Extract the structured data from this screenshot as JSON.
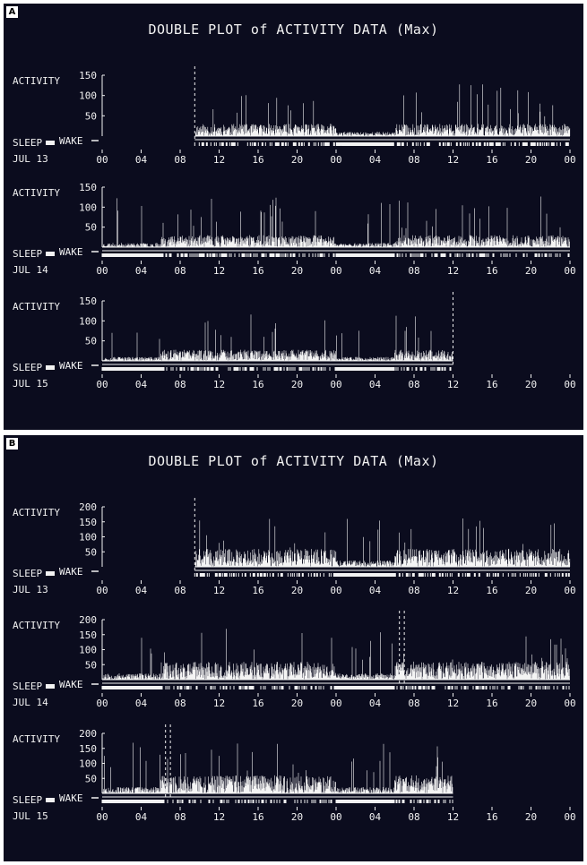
{
  "panels": [
    {
      "letter": "A",
      "title": "DOUBLE PLOT of ACTIVITY DATA (Max)",
      "y_label": "ACTIVITY",
      "sleep_label": "SLEEP",
      "wake_label": "WAKE",
      "x_ticks": [
        "00",
        "04",
        "08",
        "12",
        "16",
        "20",
        "00",
        "04",
        "08",
        "12",
        "16",
        "20",
        "00"
      ],
      "rows": [
        {
          "day": "JUL 13",
          "y_ticks": [
            "150",
            "100",
            "50"
          ],
          "ymax": 150,
          "start_hour": 9.5,
          "end_hour": 48,
          "marker_hours": [
            9.5
          ],
          "level": 30,
          "seed": 11
        },
        {
          "day": "JUL 14",
          "y_ticks": [
            "150",
            "100",
            "50"
          ],
          "ymax": 150,
          "start_hour": 0,
          "end_hour": 48,
          "marker_hours": [],
          "level": 30,
          "seed": 23
        },
        {
          "day": "JUL 15",
          "y_ticks": [
            "150",
            "100",
            "50"
          ],
          "ymax": 150,
          "start_hour": 0,
          "end_hour": 36,
          "marker_hours": [
            36
          ],
          "level": 28,
          "seed": 37
        }
      ]
    },
    {
      "letter": "B",
      "title": "DOUBLE PLOT of ACTIVITY DATA (Max)",
      "y_label": "ACTIVITY",
      "sleep_label": "SLEEP",
      "wake_label": "WAKE",
      "x_ticks": [
        "00",
        "04",
        "08",
        "12",
        "16",
        "20",
        "00",
        "04",
        "08",
        "12",
        "16",
        "20",
        "00"
      ],
      "rows": [
        {
          "day": "JUL 13",
          "y_ticks": [
            "200",
            "150",
            "100",
            "50"
          ],
          "ymax": 200,
          "start_hour": 9.5,
          "end_hour": 48,
          "marker_hours": [
            9.5
          ],
          "level": 60,
          "seed": 41
        },
        {
          "day": "JUL 14",
          "y_ticks": [
            "200",
            "150",
            "100",
            "50"
          ],
          "ymax": 200,
          "start_hour": 0,
          "end_hour": 48,
          "marker_hours": [
            30.5,
            31.0
          ],
          "level": 60,
          "seed": 53
        },
        {
          "day": "JUL 15",
          "y_ticks": [
            "200",
            "150",
            "100",
            "50"
          ],
          "ymax": 200,
          "start_hour": 0,
          "end_hour": 36,
          "marker_hours": [
            6.5,
            7.0
          ],
          "level": 60,
          "seed": 67
        }
      ]
    }
  ],
  "chart_data": [
    {
      "type": "bar",
      "title": "DOUBLE PLOT of ACTIVITY DATA (Max)",
      "ylabel": "ACTIVITY",
      "ylim": [
        0,
        150
      ],
      "x_tick_labels": [
        "00",
        "04",
        "08",
        "12",
        "16",
        "20",
        "00",
        "04",
        "08",
        "12",
        "16",
        "20",
        "00"
      ],
      "rows": [
        {
          "day": "JUL 13",
          "recording_start_hour": 9.5
        },
        {
          "day": "JUL 14"
        },
        {
          "day": "JUL 15",
          "recording_end_hour": 36
        }
      ]
    },
    {
      "type": "bar",
      "title": "DOUBLE PLOT of ACTIVITY DATA (Max)",
      "ylabel": "ACTIVITY",
      "ylim": [
        0,
        200
      ],
      "x_tick_labels": [
        "00",
        "04",
        "08",
        "12",
        "16",
        "20",
        "00",
        "04",
        "08",
        "12",
        "16",
        "20",
        "00"
      ],
      "rows": [
        {
          "day": "JUL 13",
          "recording_start_hour": 9.5
        },
        {
          "day": "JUL 14"
        },
        {
          "day": "JUL 15",
          "recording_end_hour": 36
        }
      ]
    }
  ]
}
